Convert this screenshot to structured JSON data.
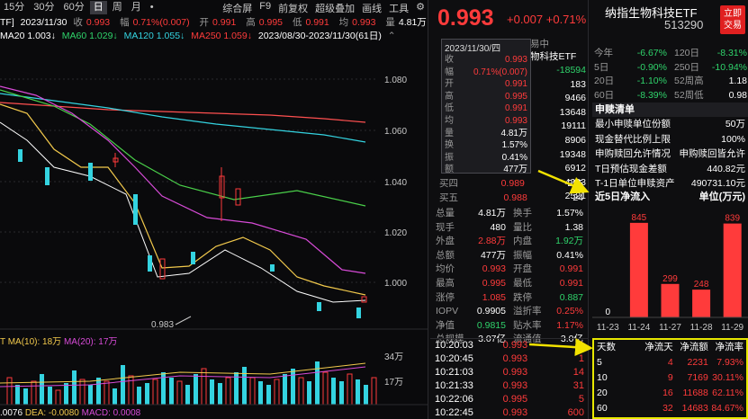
{
  "period_bar": {
    "tabs": [
      "15分",
      "30分",
      "60分",
      "日",
      "周",
      "月"
    ],
    "active": "日",
    "right_items": [
      "综合屏",
      "F9",
      "前复权",
      "超级叠加",
      "画线",
      "工具"
    ]
  },
  "quote_line": {
    "code": "TF]",
    "date": "2023/11/30",
    "close_label": "收",
    "close": "0.993",
    "pct_label": "幅",
    "pct": "0.71%(0.007)",
    "open_label": "开",
    "open": "0.991",
    "high_label": "高",
    "high": "0.995",
    "low_label": "低",
    "low": "0.991",
    "last_label": "均",
    "last": "0.993",
    "vol_label": "量",
    "vol": "4.81万"
  },
  "ma_line": {
    "ma20": "MA20 1.003↓",
    "ma60": "MA60 1.029↓",
    "ma120": "MA120 1.055↓",
    "ma250": "MA250 1.059↓",
    "range": "2023/08/30-2023/11/30(61日)"
  },
  "chart": {
    "y_labels": [
      "1.080",
      "1.060",
      "1.040",
      "1.020",
      "1.000"
    ],
    "low_marker": "0.983",
    "vol_ticks": [
      "34万",
      "17万"
    ],
    "vol_legend": {
      "ma5": "T MA(10): 18万",
      "ma20": "MA(20): 17万"
    },
    "macd_legend": {
      "dif": ".0076",
      "dea": "DEA: -0.0080",
      "macd": "MACD: 0.0008"
    }
  },
  "popup": {
    "date": "2023/11/30/四",
    "rows": [
      {
        "k": "收",
        "v": "0.993"
      },
      {
        "k": "幅",
        "v": "0.71%(0.007)"
      },
      {
        "k": "开",
        "v": "0.991"
      },
      {
        "k": "高",
        "v": "0.995"
      },
      {
        "k": "低",
        "v": "0.991"
      },
      {
        "k": "均",
        "v": "0.993"
      },
      {
        "k": "量",
        "v": "4.81万"
      },
      {
        "k": "换",
        "v": "1.57%"
      },
      {
        "k": "振",
        "v": "0.41%"
      },
      {
        "k": "额",
        "v": "477万"
      }
    ]
  },
  "mid": {
    "price": "0.993",
    "change": "+0.007",
    "pct": "+0.71%",
    "header_tail": "易中",
    "fund_name": "物科技ETF",
    "top_values": [
      "-18594",
      "183",
      "9466",
      "13648",
      "19111",
      "8906"
    ],
    "order_vals": [
      "19348",
      "6912",
      "4203",
      "2521"
    ],
    "buy4": {
      "k": "买四",
      "p": "0.989",
      "v": "235"
    },
    "buy5": {
      "k": "买五",
      "p": "0.988",
      "v": "24"
    },
    "stats": [
      {
        "a": "总量",
        "av": "4.81万",
        "b": "换手",
        "bv": "1.57%",
        "ac": "white",
        "bc": "white"
      },
      {
        "a": "现手",
        "av": "480",
        "b": "量比",
        "bv": "1.38",
        "ac": "white",
        "bc": "white"
      },
      {
        "a": "外盘",
        "av": "2.88万",
        "b": "内盘",
        "bv": "1.92万",
        "ac": "red",
        "bc": "green"
      },
      {
        "a": "总额",
        "av": "477万",
        "b": "振幅",
        "bv": "0.41%",
        "ac": "white",
        "bc": "white"
      },
      {
        "a": "均价",
        "av": "0.993",
        "b": "开盘",
        "bv": "0.991",
        "ac": "red",
        "bc": "red"
      },
      {
        "a": "最高",
        "av": "0.995",
        "b": "最低",
        "bv": "0.991",
        "ac": "red",
        "bc": "red"
      },
      {
        "a": "涨停",
        "av": "1.085",
        "b": "跌停",
        "bv": "0.887",
        "ac": "red",
        "bc": "green"
      },
      {
        "a": "IOPV",
        "av": "0.9905",
        "b": "溢折率",
        "bv": "0.25%",
        "ac": "white",
        "bc": "red"
      },
      {
        "a": "净值",
        "av": "0.9815",
        "b": "贴水率",
        "bv": "1.17%",
        "ac": "green",
        "bc": "red"
      },
      {
        "a": "总规模",
        "av": "3.07亿",
        "b": "流通值",
        "bv": "3.0亿",
        "ac": "white",
        "bc": "white"
      }
    ],
    "trades": [
      {
        "t": "10:20:03",
        "p": "0.993",
        "v": "1"
      },
      {
        "t": "10:20:45",
        "p": "0.993",
        "v": "1"
      },
      {
        "t": "10:21:03",
        "p": "0.993",
        "v": "14"
      },
      {
        "t": "10:21:33",
        "p": "0.993",
        "v": "31"
      },
      {
        "t": "10:22:06",
        "p": "0.995",
        "v": "5"
      },
      {
        "t": "10:22:45",
        "p": "0.993",
        "v": "600"
      }
    ]
  },
  "right": {
    "title": "纳指生物科技ETF",
    "code": "513290",
    "trade_btn": [
      "立即",
      "交易"
    ],
    "perf": [
      {
        "a": "今年",
        "av": "-6.67%",
        "b": "120日",
        "bv": "-8.31%"
      },
      {
        "a": "5日",
        "av": "-0.90%",
        "b": "250日",
        "bv": "-10.94%"
      },
      {
        "a": "20日",
        "av": "-1.10%",
        "b": "52周高",
        "bv": "1.18"
      },
      {
        "a": "60日",
        "av": "-8.39%",
        "b": "52周低",
        "bv": "0.98"
      }
    ],
    "redeem_title": "申赎清单",
    "redeem_rows": [
      {
        "k": "最小申赎单位份额",
        "v": "50万"
      },
      {
        "k": "现金替代比例上限",
        "v": "100%"
      },
      {
        "k": "申购赎回允许情况",
        "v": "申购赎回皆允许"
      },
      {
        "k": "T日预估现金差额",
        "v": "440.82元"
      },
      {
        "k": "T-1日单位申赎资产",
        "v": "490731.10元"
      }
    ],
    "flow_title": "近5日净流入",
    "flow_unit": "单位(万元)",
    "stats_headers": [
      "天数",
      "净流天",
      "净流额",
      "净流率"
    ],
    "stats_rows": [
      [
        "5",
        "4",
        "2231",
        "7.93%"
      ],
      [
        "10",
        "9",
        "7169",
        "30.11%"
      ],
      [
        "20",
        "16",
        "11688",
        "62.11%"
      ],
      [
        "60",
        "32",
        "14683",
        "84.67%"
      ]
    ]
  },
  "chart_data": {
    "type": "bar",
    "title": "近5日净流入",
    "ylabel": "单位(万元)",
    "categories": [
      "11-23",
      "11-24",
      "11-27",
      "11-28",
      "11-29"
    ],
    "values": [
      0,
      845,
      299,
      248,
      839
    ],
    "colors": {
      "up": "#ff3b3b",
      "down": "#2fd36b"
    }
  }
}
